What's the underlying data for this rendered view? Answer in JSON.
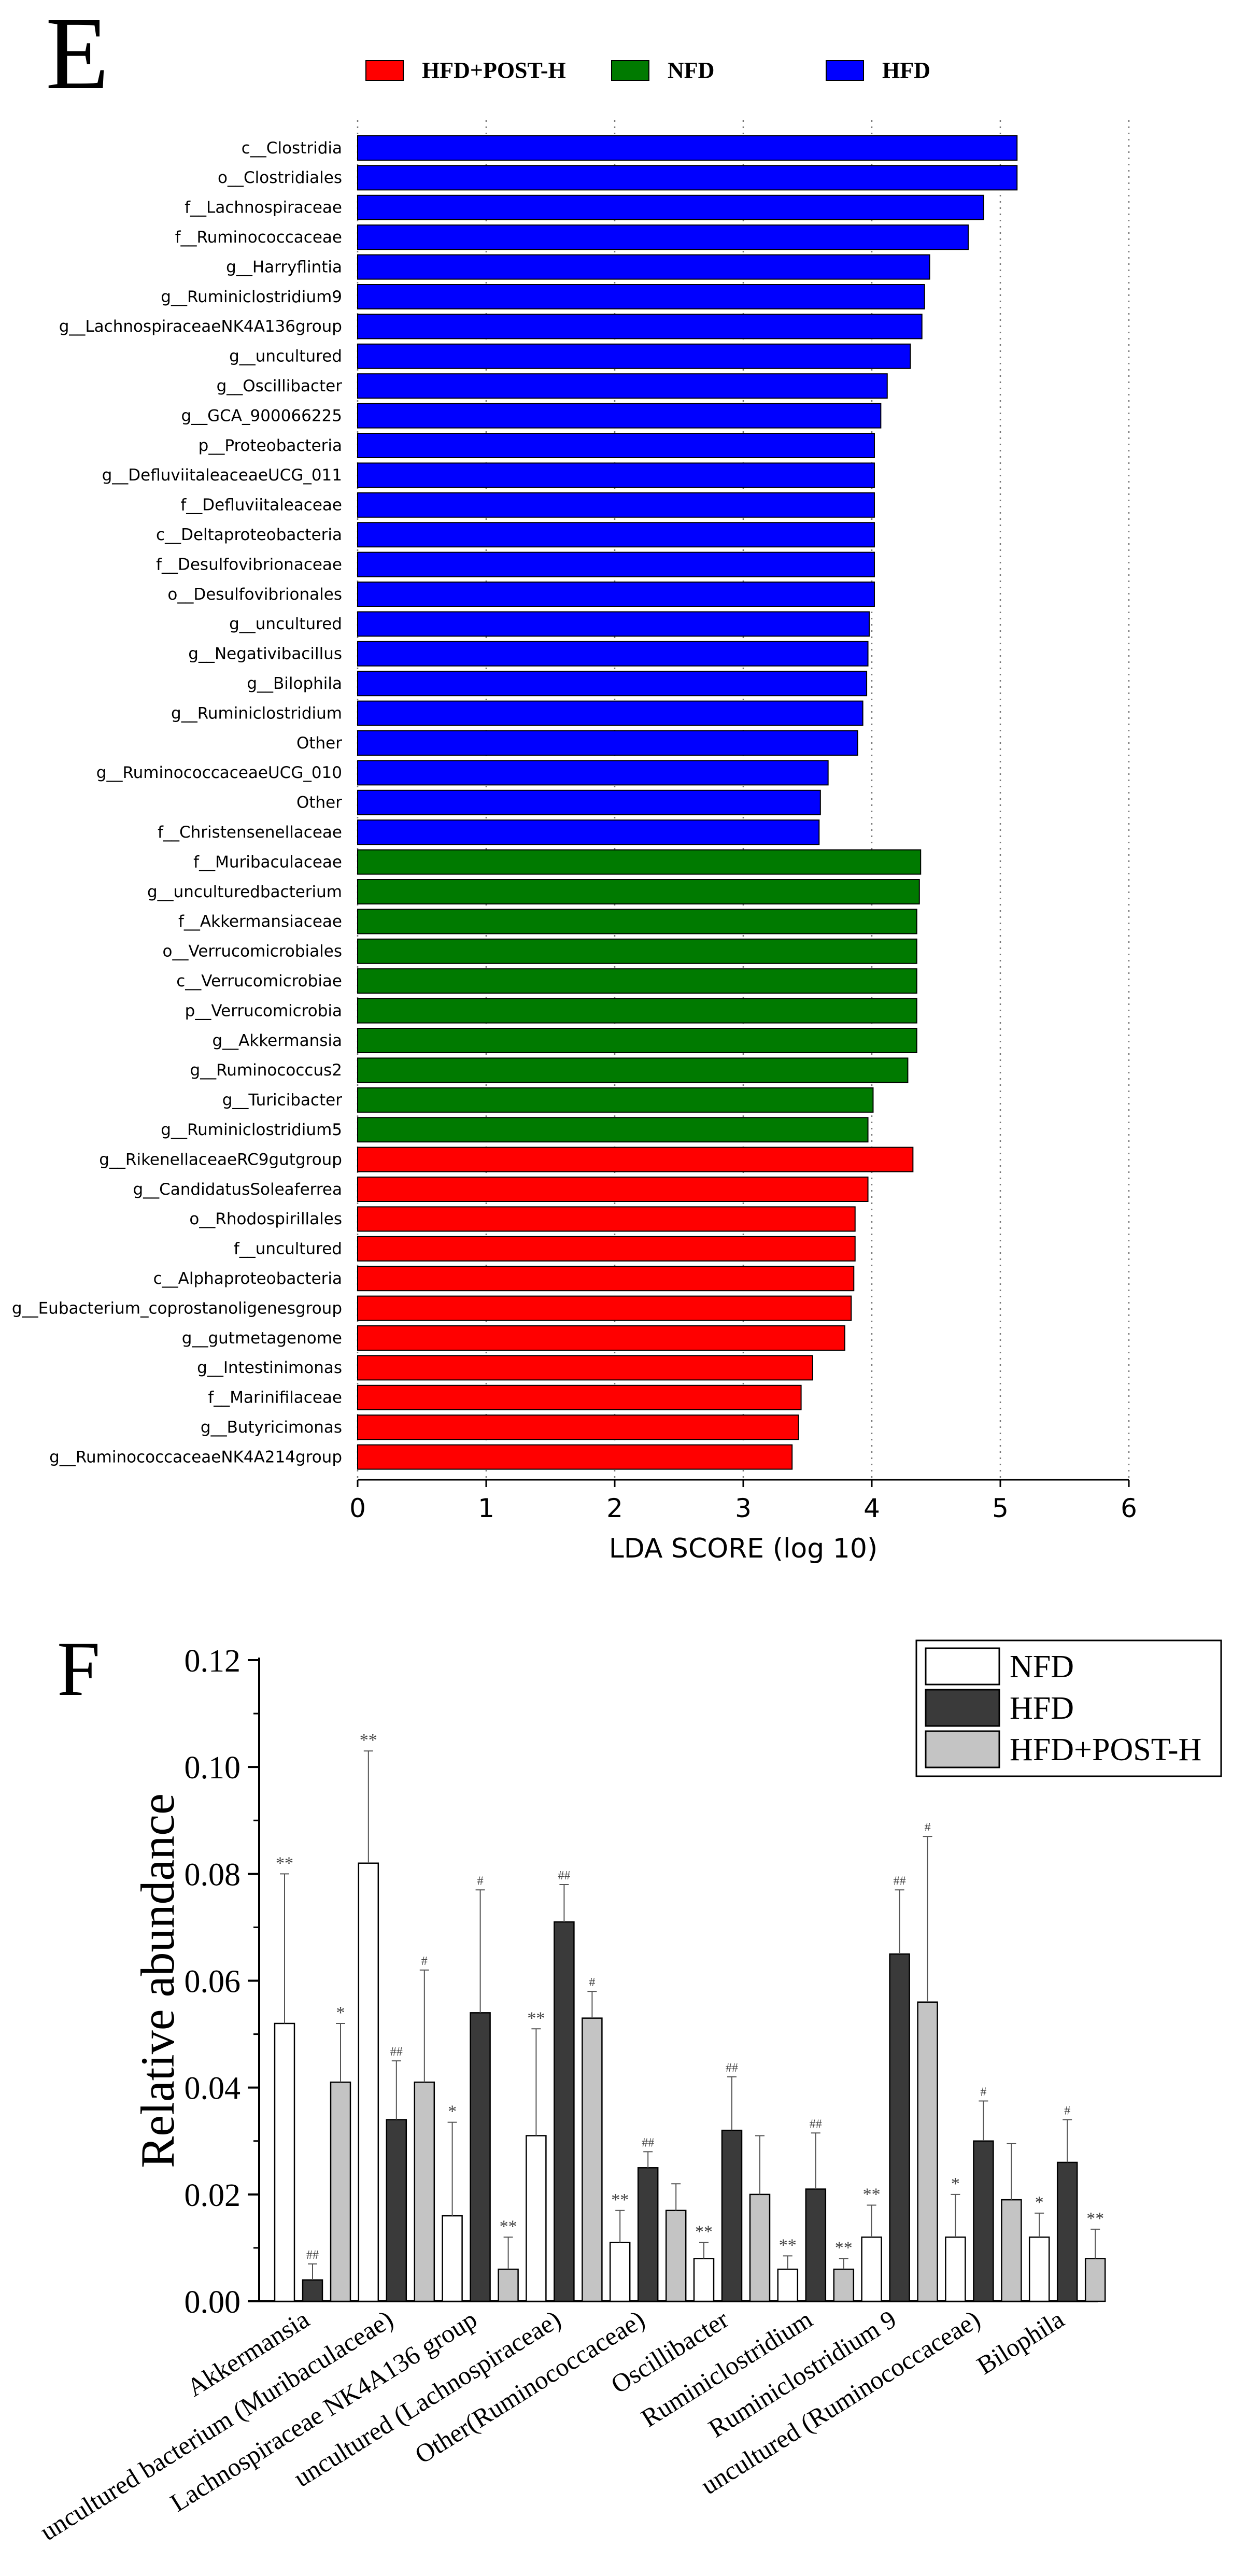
{
  "panels": {
    "e_label": "E",
    "f_label": "F"
  },
  "colors": {
    "HFD": "#0000ff",
    "NFD": "#007a00",
    "HFD+POST-H": "#ff0000",
    "bar_f_nfd": "#ffffff",
    "bar_f_hfd": "#3a3a3a",
    "bar_f_post": "#c4c4c4"
  },
  "chart_data": [
    {
      "type": "bar",
      "orientation": "horizontal",
      "xlabel": "LDA SCORE (log 10)",
      "xlim": [
        0,
        6
      ],
      "xticks": [
        "0",
        "1",
        "2",
        "3",
        "4",
        "5",
        "6"
      ],
      "legend": [
        {
          "name": "HFD+POST-H",
          "color": "#ff0000"
        },
        {
          "name": "NFD",
          "color": "#007a00"
        },
        {
          "name": "HFD",
          "color": "#0000ff"
        }
      ],
      "bars": [
        {
          "label": "c__Clostridia",
          "value": 5.13,
          "group": "HFD"
        },
        {
          "label": "o__Clostridiales",
          "value": 5.13,
          "group": "HFD"
        },
        {
          "label": "f__Lachnospiraceae",
          "value": 4.87,
          "group": "HFD"
        },
        {
          "label": "f__Ruminococcaceae",
          "value": 4.75,
          "group": "HFD"
        },
        {
          "label": "g__Harryflintia",
          "value": 4.45,
          "group": "HFD"
        },
        {
          "label": "g__Ruminiclostridium9",
          "value": 4.41,
          "group": "HFD"
        },
        {
          "label": "g__LachnospiraceaeNK4A136group",
          "value": 4.39,
          "group": "HFD"
        },
        {
          "label": "g__uncultured",
          "value": 4.3,
          "group": "HFD"
        },
        {
          "label": "g__Oscillibacter",
          "value": 4.12,
          "group": "HFD"
        },
        {
          "label": "g__GCA_900066225",
          "value": 4.07,
          "group": "HFD"
        },
        {
          "label": "p__Proteobacteria",
          "value": 4.02,
          "group": "HFD"
        },
        {
          "label": "g__DefluviitaleaceaeUCG_011",
          "value": 4.02,
          "group": "HFD"
        },
        {
          "label": "f__Defluviitaleaceae",
          "value": 4.02,
          "group": "HFD"
        },
        {
          "label": "c__Deltaproteobacteria",
          "value": 4.02,
          "group": "HFD"
        },
        {
          "label": "f__Desulfovibrionaceae",
          "value": 4.02,
          "group": "HFD"
        },
        {
          "label": "o__Desulfovibrionales",
          "value": 4.02,
          "group": "HFD"
        },
        {
          "label": "g__uncultured",
          "value": 3.98,
          "group": "HFD"
        },
        {
          "label": "g__Negativibacillus",
          "value": 3.97,
          "group": "HFD"
        },
        {
          "label": "g__Bilophila",
          "value": 3.96,
          "group": "HFD"
        },
        {
          "label": "g__Ruminiclostridium",
          "value": 3.93,
          "group": "HFD"
        },
        {
          "label": "Other",
          "value": 3.89,
          "group": "HFD"
        },
        {
          "label": "g__RuminococcaceaeUCG_010",
          "value": 3.66,
          "group": "HFD"
        },
        {
          "label": "Other",
          "value": 3.6,
          "group": "HFD"
        },
        {
          "label": "f__Christensenellaceae",
          "value": 3.59,
          "group": "HFD"
        },
        {
          "label": "f__Muribaculaceae",
          "value": 4.38,
          "group": "NFD"
        },
        {
          "label": "g__unculturedbacterium",
          "value": 4.37,
          "group": "NFD"
        },
        {
          "label": "f__Akkermansiaceae",
          "value": 4.35,
          "group": "NFD"
        },
        {
          "label": "o__Verrucomicrobiales",
          "value": 4.35,
          "group": "NFD"
        },
        {
          "label": "c__Verrucomicrobiae",
          "value": 4.35,
          "group": "NFD"
        },
        {
          "label": "p__Verrucomicrobia",
          "value": 4.35,
          "group": "NFD"
        },
        {
          "label": "g__Akkermansia",
          "value": 4.35,
          "group": "NFD"
        },
        {
          "label": "g__Ruminococcus2",
          "value": 4.28,
          "group": "NFD"
        },
        {
          "label": "g__Turicibacter",
          "value": 4.01,
          "group": "NFD"
        },
        {
          "label": "g__Ruminiclostridium5",
          "value": 3.97,
          "group": "NFD"
        },
        {
          "label": "g__RikenellaceaeRC9gutgroup",
          "value": 4.32,
          "group": "HFD+POST-H"
        },
        {
          "label": "g__CandidatusSoleaferrea",
          "value": 3.97,
          "group": "HFD+POST-H"
        },
        {
          "label": "o__Rhodospirillales",
          "value": 3.87,
          "group": "HFD+POST-H"
        },
        {
          "label": "f__uncultured",
          "value": 3.87,
          "group": "HFD+POST-H"
        },
        {
          "label": "c__Alphaproteobacteria",
          "value": 3.86,
          "group": "HFD+POST-H"
        },
        {
          "label": "g__Eubacterium_coprostanoligenesgroup",
          "value": 3.84,
          "group": "HFD+POST-H"
        },
        {
          "label": "g__gutmetagenome",
          "value": 3.79,
          "group": "HFD+POST-H"
        },
        {
          "label": "g__Intestinimonas",
          "value": 3.54,
          "group": "HFD+POST-H"
        },
        {
          "label": "f__Marinifilaceae",
          "value": 3.45,
          "group": "HFD+POST-H"
        },
        {
          "label": "g__Butyricimonas",
          "value": 3.43,
          "group": "HFD+POST-H"
        },
        {
          "label": "g__RuminococcaceaeNK4A214group",
          "value": 3.38,
          "group": "HFD+POST-H"
        }
      ]
    },
    {
      "type": "bar",
      "orientation": "vertical",
      "ylabel": "Relative abundance",
      "ylim": [
        0,
        0.12
      ],
      "yticks": [
        "0.00",
        "0.02",
        "0.04",
        "0.06",
        "0.08",
        "0.10",
        "0.12"
      ],
      "legend": [
        {
          "name": "NFD",
          "color": "#ffffff"
        },
        {
          "name": "HFD",
          "color": "#3a3a3a"
        },
        {
          "name": "HFD+POST-H",
          "color": "#c4c4c4"
        }
      ],
      "categories": [
        "Akkermansia",
        "uncultured bacterium (Muribaculaceae)",
        "Lachnospiraceae NK4A136 group",
        "uncultured (Lachnospiraceae)",
        "Other(Ruminococcaceae)",
        "Oscillibacter",
        "Ruminiclostridium",
        "Ruminiclostridium 9",
        "uncultured (Ruminococcaceae)",
        "Bilophila"
      ],
      "series": [
        {
          "name": "NFD",
          "values": [
            0.052,
            0.082,
            0.016,
            0.031,
            0.011,
            0.008,
            0.006,
            0.012,
            0.012,
            0.012
          ],
          "errors": [
            0.028,
            0.021,
            0.0175,
            0.02,
            0.006,
            0.003,
            0.0025,
            0.006,
            0.008,
            0.0045
          ],
          "marks": [
            "**",
            "**",
            "*",
            "**",
            "**",
            "**",
            "**",
            "**",
            "*",
            "*"
          ]
        },
        {
          "name": "HFD",
          "values": [
            0.004,
            0.034,
            0.054,
            0.071,
            0.025,
            0.032,
            0.021,
            0.065,
            0.03,
            0.026
          ],
          "errors": [
            0.003,
            0.011,
            0.023,
            0.007,
            0.003,
            0.01,
            0.0105,
            0.012,
            0.0075,
            0.008
          ],
          "marks": [
            "##",
            "##",
            "#",
            "##",
            "##",
            "##",
            "##",
            "##",
            "#",
            "#"
          ]
        },
        {
          "name": "HFD+POST-H",
          "values": [
            0.041,
            0.041,
            0.006,
            0.053,
            0.017,
            0.02,
            0.006,
            0.056,
            0.019,
            0.008
          ],
          "errors": [
            0.011,
            0.021,
            0.006,
            0.005,
            0.005,
            0.011,
            0.002,
            0.031,
            0.0105,
            0.0055
          ],
          "marks": [
            "*",
            "#",
            "**",
            "#",
            "",
            "",
            "**",
            "#",
            "",
            "**"
          ]
        }
      ]
    }
  ]
}
